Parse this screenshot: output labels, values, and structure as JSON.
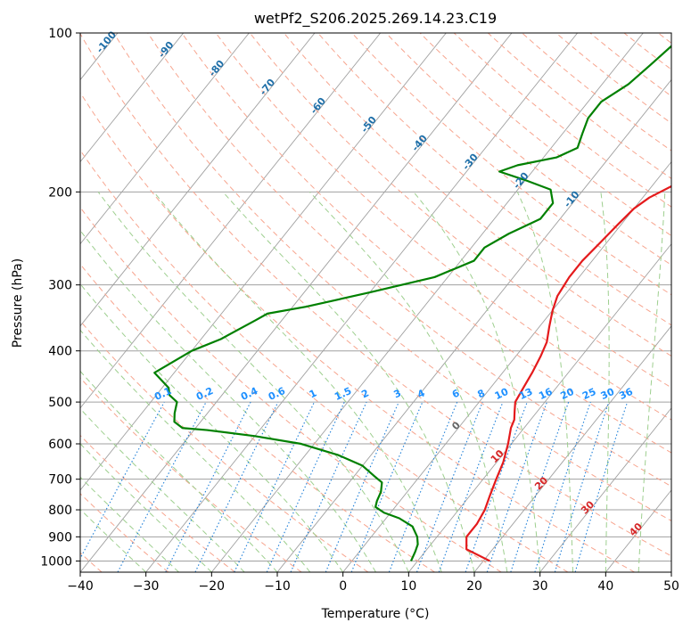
{
  "chart_data": {
    "type": "line",
    "title": "wetPf2_S206.2025.269.14.23.C19",
    "xlabel": "Temperature (°C)",
    "ylabel": "Pressure (hPa)",
    "xlim": [
      -40,
      50
    ],
    "ylim": [
      1050,
      100
    ],
    "y_scale": "log",
    "grid": true,
    "x_ticks": [
      -40,
      -30,
      -20,
      -10,
      0,
      10,
      20,
      30,
      40,
      50
    ],
    "x_tick_labels": [
      "−40",
      "−30",
      "−20",
      "−10",
      "0",
      "10",
      "20",
      "30",
      "40",
      "50"
    ],
    "y_ticks": [
      100,
      200,
      300,
      400,
      500,
      600,
      700,
      800,
      900,
      1000
    ],
    "y_tick_labels": [
      "100",
      "200",
      "300",
      "400",
      "500",
      "600",
      "700",
      "800",
      "900",
      "1000"
    ],
    "series": [
      {
        "role": "temperature",
        "color": "#e41a1c",
        "points": [
          [
            21,
            1000
          ],
          [
            16,
            950
          ],
          [
            14.5,
            900
          ],
          [
            14.5,
            850
          ],
          [
            14,
            800
          ],
          [
            13,
            750
          ],
          [
            12,
            700
          ],
          [
            11,
            650
          ],
          [
            9.5,
            600
          ],
          [
            8,
            560
          ],
          [
            7.5,
            540
          ],
          [
            6.5,
            520
          ],
          [
            5.5,
            500
          ],
          [
            5,
            470
          ],
          [
            4.5,
            440
          ],
          [
            3.8,
            410
          ],
          [
            3,
            385
          ],
          [
            1.5,
            360
          ],
          [
            0,
            335
          ],
          [
            -1,
            315
          ],
          [
            -1.5,
            290
          ],
          [
            -1.5,
            270
          ],
          [
            -1,
            250
          ],
          [
            -0.5,
            230
          ],
          [
            0,
            215
          ],
          [
            1,
            205
          ],
          [
            3,
            195
          ],
          [
            6,
            186
          ],
          [
            8,
            175
          ],
          [
            8,
            160
          ],
          [
            8.5,
            145
          ],
          [
            9.5,
            130
          ],
          [
            11,
            118
          ],
          [
            13,
            108
          ],
          [
            15,
            100
          ]
        ]
      },
      {
        "role": "dewpoint",
        "color": "#008000",
        "points": [
          [
            9,
            1000
          ],
          [
            8.5,
            960
          ],
          [
            8,
            930
          ],
          [
            7,
            900
          ],
          [
            5,
            860
          ],
          [
            2,
            830
          ],
          [
            -1,
            810
          ],
          [
            -3,
            790
          ],
          [
            -3.5,
            770
          ],
          [
            -4,
            740
          ],
          [
            -5,
            710
          ],
          [
            -7,
            690
          ],
          [
            -10,
            660
          ],
          [
            -15,
            630
          ],
          [
            -22,
            600
          ],
          [
            -30,
            580
          ],
          [
            -38,
            565
          ],
          [
            -42,
            560
          ],
          [
            -44,
            545
          ],
          [
            -45,
            525
          ],
          [
            -46,
            500
          ],
          [
            -48,
            485
          ],
          [
            -49,
            470
          ],
          [
            -53,
            440
          ],
          [
            -50,
            400
          ],
          [
            -47,
            380
          ],
          [
            -44,
            350
          ],
          [
            -43,
            340
          ],
          [
            -38,
            330
          ],
          [
            -30,
            310
          ],
          [
            -22,
            290
          ],
          [
            -18,
            270
          ],
          [
            -18,
            255
          ],
          [
            -16,
            240
          ],
          [
            -13,
            225
          ],
          [
            -13,
            210
          ],
          [
            -15,
            198
          ],
          [
            -20,
            190
          ],
          [
            -25,
            183
          ],
          [
            -23,
            178
          ],
          [
            -18,
            172
          ],
          [
            -16,
            165
          ],
          [
            -17,
            155
          ],
          [
            -18,
            145
          ],
          [
            -18,
            135
          ],
          [
            -16,
            125
          ],
          [
            -15,
            115
          ],
          [
            -14,
            105
          ],
          [
            -13,
            100
          ]
        ]
      }
    ],
    "dry_adiabat_labels": [
      "-100",
      "-90",
      "-80",
      "-70",
      "-60",
      "-50",
      "-40",
      "-30",
      "-20",
      "-10"
    ],
    "dry_adiabat_label_values": [
      -100,
      -90,
      -80,
      -70,
      -60,
      -50,
      -40,
      -30,
      -20,
      -10
    ],
    "moist_adiabat_labels": [
      "0",
      "10",
      "20",
      "30",
      "40"
    ],
    "moist_adiabat_label_values": [
      0,
      10,
      20,
      30,
      40
    ],
    "mixing_ratio_labels": [
      "0.1",
      "0.2",
      "0.4",
      "0.6",
      "1",
      "1.5",
      "2",
      "3",
      "4",
      "6",
      "8",
      "10",
      "13",
      "16",
      "20",
      "25",
      "30",
      "36"
    ],
    "mixing_ratio_values": [
      0.1,
      0.2,
      0.4,
      0.6,
      1,
      1.5,
      2,
      3,
      4,
      6,
      8,
      10,
      13,
      16,
      20,
      25,
      30,
      36
    ],
    "colors": {
      "isotherm": "#a0a0a0",
      "isobar": "#a0a0a0",
      "dry_adiabat": "#f7a58f",
      "moist_adiabat": "#9ecf8f",
      "mixing_ratio": "#1e7fd8",
      "dry_label": "#1f6fa8",
      "moist_label": "#d62728",
      "mixing_label": "#1e90ff",
      "skew_curve": "#c8a882"
    }
  }
}
